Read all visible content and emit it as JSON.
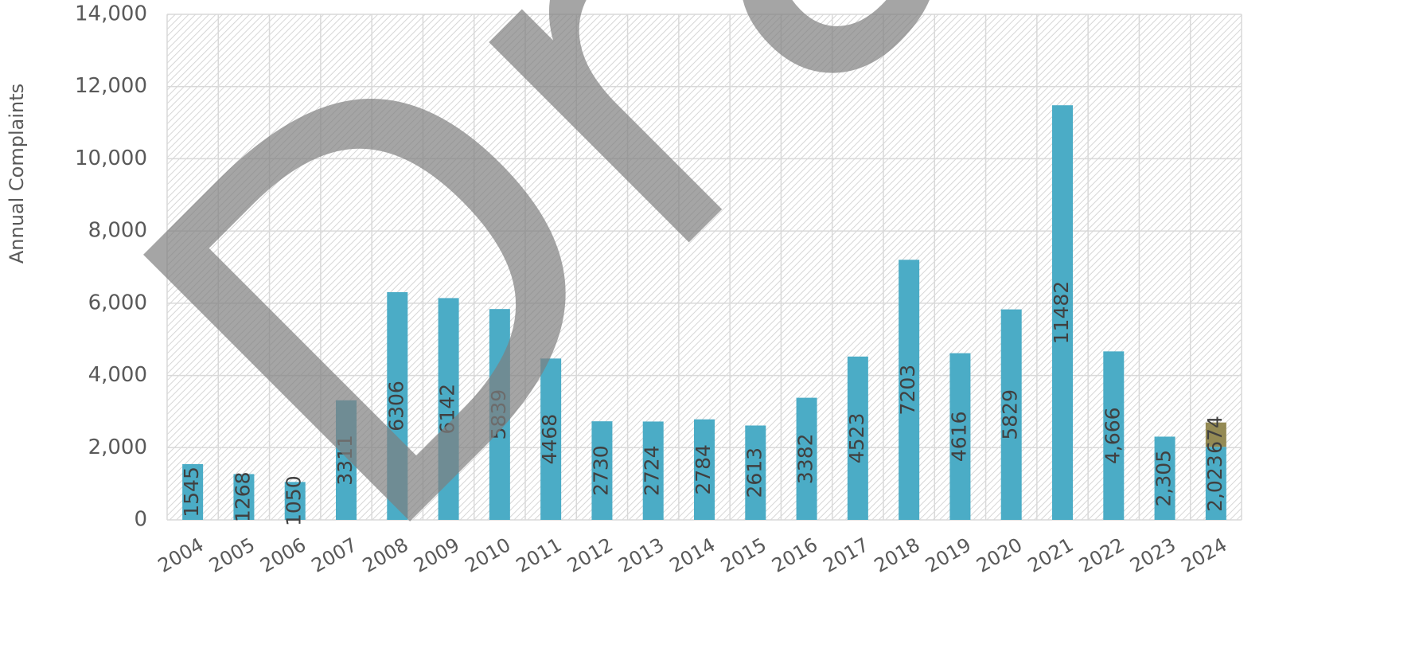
{
  "chart_data": {
    "type": "bar",
    "stacked": true,
    "y_label": "Annual Complaints",
    "watermark": "Draft",
    "categories": [
      "2004",
      "2005",
      "2006",
      "2007",
      "2008",
      "2009",
      "2010",
      "2011",
      "2012",
      "2013",
      "2014",
      "2015",
      "2016",
      "2017",
      "2018",
      "2019",
      "2020",
      "2021",
      "2022",
      "2023",
      "2024"
    ],
    "series": [
      {
        "color": "#4bacc6",
        "values": [
          1545,
          1268,
          1050,
          3311,
          6306,
          6142,
          5839,
          4468,
          2730,
          2724,
          2784,
          2613,
          3382,
          4523,
          7203,
          4616,
          5829,
          11482,
          4666,
          2305,
          2023
        ],
        "value_labels": [
          "1545",
          "1268",
          "1050",
          "3311",
          "6306",
          "6142",
          "5839",
          "4468",
          "2730",
          "2724",
          "2784",
          "2613",
          "3382",
          "4523",
          "7203",
          "4616",
          "5829",
          "11482",
          "4,666",
          "2,305",
          "2,023"
        ]
      },
      {
        "color": "#948a54",
        "values": [
          null,
          null,
          null,
          null,
          null,
          null,
          null,
          null,
          null,
          null,
          null,
          null,
          null,
          null,
          null,
          null,
          null,
          null,
          null,
          null,
          674
        ]
      }
    ],
    "ylim": [
      0,
      14000
    ],
    "yticks": [
      0,
      {
        "value": 2000,
        "label": "2,000"
      },
      {
        "value": 4000,
        "label": "4,000"
      },
      {
        "value": 6000,
        "label": "6,000"
      },
      {
        "value": 8000,
        "label": "8,000"
      },
      {
        "value": 10000,
        "label": "10,000"
      },
      {
        "value": 12000,
        "label": "12,000"
      },
      {
        "value": 14000,
        "label": "14,000"
      }
    ],
    "grid": true
  }
}
